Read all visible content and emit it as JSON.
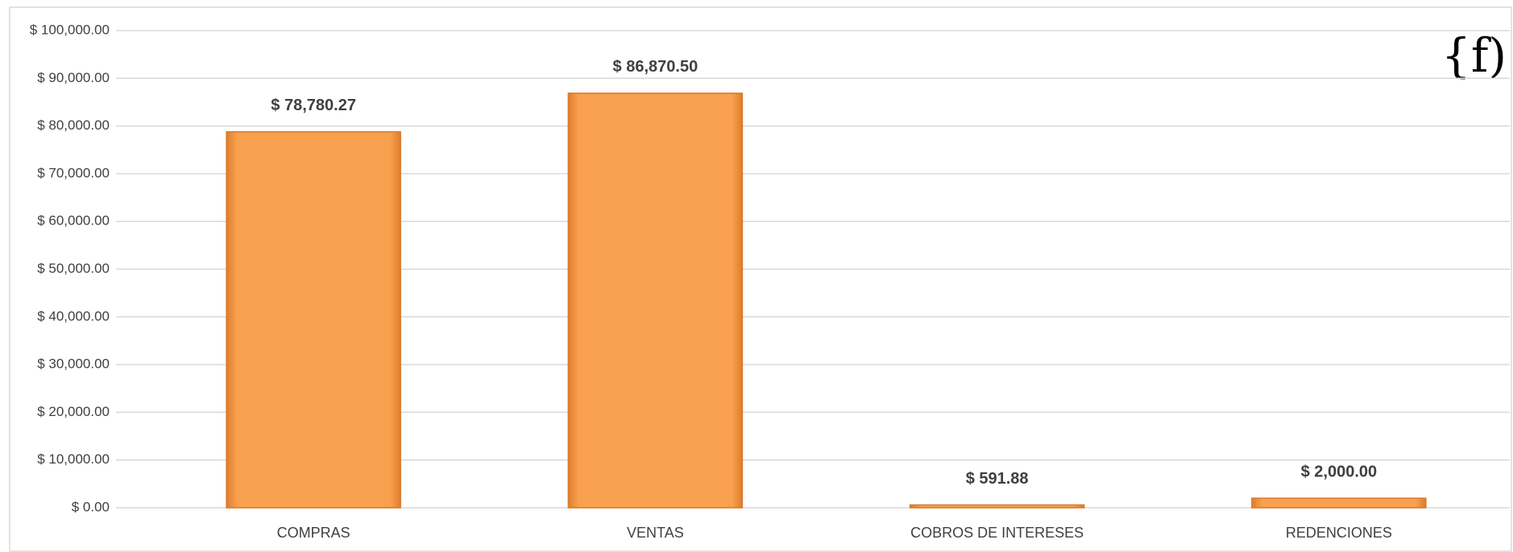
{
  "chart_data": {
    "type": "bar",
    "annotation": "{f)",
    "categories": [
      "COMPRAS",
      "VENTAS",
      "COBROS DE INTERESES",
      "REDENCIONES"
    ],
    "values": [
      78780.27,
      86870.5,
      591.88,
      2000
    ],
    "value_labels": [
      "$ 78,780.27",
      "$ 86,870.50",
      "$ 591.88",
      "$ 2,000.00"
    ],
    "color": "#f9a04f",
    "ylim": [
      0,
      100000
    ],
    "yticks": [
      {
        "value": 0,
        "label": "$ 0.00"
      },
      {
        "value": 10000,
        "label": "$ 10,000.00"
      },
      {
        "value": 20000,
        "label": "$ 20,000.00"
      },
      {
        "value": 30000,
        "label": "$ 30,000.00"
      },
      {
        "value": 40000,
        "label": "$ 40,000.00"
      },
      {
        "value": 50000,
        "label": "$ 50,000.00"
      },
      {
        "value": 60000,
        "label": "$ 60,000.00"
      },
      {
        "value": 70000,
        "label": "$ 70,000.00"
      },
      {
        "value": 80000,
        "label": "$ 80,000.00"
      },
      {
        "value": 90000,
        "label": "$ 90,000.00"
      },
      {
        "value": 100000,
        "label": "$ 100,000.00"
      }
    ],
    "grid": true
  }
}
